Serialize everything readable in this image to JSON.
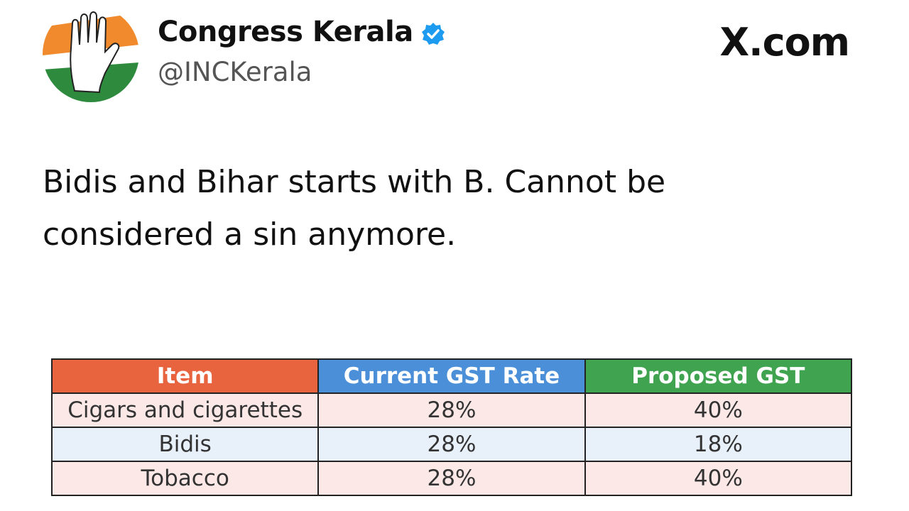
{
  "post": {
    "author": {
      "name": "Congress Kerala",
      "handle": "@INCKerala"
    },
    "site": "X.com",
    "text": "Bidis and Bihar starts with B. Cannot be considered a sin anymore.",
    "table": {
      "header": [
        "Item",
        "Current GST Rate",
        "Proposed GST"
      ],
      "rows": [
        [
          "Cigars and cigarettes",
          "28%",
          "40%"
        ],
        [
          "Bidis",
          "28%",
          "18%"
        ],
        [
          "Tobacco",
          "28%",
          "40%"
        ]
      ]
    }
  }
}
